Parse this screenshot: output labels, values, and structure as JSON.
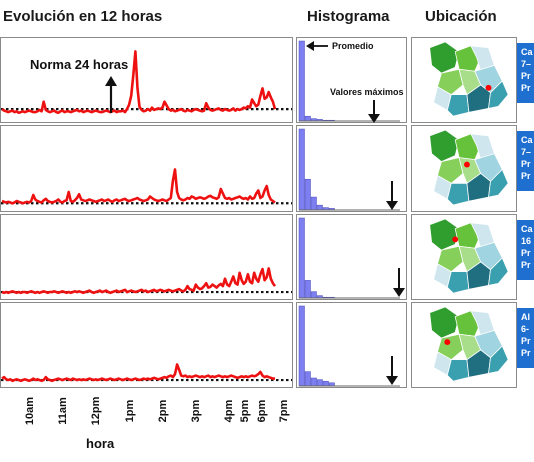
{
  "headers": {
    "evolution": "Evolución en 12 horas",
    "histogram": "Histograma",
    "location": "Ubicación"
  },
  "annotations": {
    "norm": "Norma 24 horas",
    "promedio": "Promedio",
    "valores_maximos": "Valores máximos"
  },
  "x_axis": {
    "label": "hora",
    "ticks": [
      "10am",
      "11am",
      "12pm",
      "1pm",
      "2pm",
      "3pm",
      "4pm",
      "5pm",
      "6pm",
      "7pm"
    ]
  },
  "colors": {
    "line": "#ee1111",
    "histogram_bar": "#7d7ff0",
    "info_panel": "#1f6fd1",
    "map_highlight": "#44bb22",
    "map_light_green": "#a8dd8a",
    "map_pale_blue": "#cfe6ee",
    "map_teal": "#3aa0b0",
    "map_dark_teal": "#1f6f80",
    "station_marker": "#ff0000"
  },
  "info_panels": [
    [
      "Ca",
      "7–",
      "Pr",
      "Pr"
    ],
    [
      "Ca",
      "7–",
      "Pr",
      "Pr"
    ],
    [
      "Ca",
      "16",
      "Pr",
      "Pr"
    ],
    [
      "Al",
      "6-",
      "Pr",
      "Pr"
    ]
  ],
  "chart_data": [
    {
      "type": "line",
      "x_range": [
        9.0,
        19.4
      ],
      "ylim": [
        0,
        100
      ],
      "norm": 12,
      "series": [
        {
          "values": [
            12,
            10,
            9,
            8,
            9,
            10,
            8,
            9,
            7,
            8,
            9,
            8,
            9,
            10,
            9,
            8,
            8,
            9,
            11,
            9,
            22,
            11,
            9,
            8,
            9,
            10,
            8,
            7,
            9,
            10,
            8,
            9,
            9,
            8,
            9,
            10,
            11,
            9,
            10,
            8,
            9,
            10,
            9,
            8,
            9,
            10,
            9,
            8,
            8,
            9,
            10,
            9,
            8,
            9,
            10,
            8,
            9,
            9,
            10,
            8,
            12,
            18,
            30,
            58,
            90,
            40,
            15,
            11,
            9,
            10,
            12,
            10,
            14,
            11,
            12,
            13,
            12,
            14,
            22,
            17,
            12,
            10,
            11,
            9,
            10,
            11,
            12,
            10,
            9,
            11,
            10,
            9,
            11,
            12,
            11,
            10,
            9,
            10,
            20,
            14,
            11,
            10,
            11,
            12,
            13,
            11,
            10,
            12,
            11,
            10,
            11,
            13,
            10,
            12,
            11,
            12,
            14,
            13,
            16,
            14,
            25,
            20,
            16,
            18,
            30,
            40,
            26,
            28,
            35,
            28,
            22,
            12
          ]
        }
      ],
      "histogram": [
        100,
        6,
        3,
        2,
        1,
        1
      ]
    },
    {
      "type": "line",
      "x_range": [
        9.0,
        19.4
      ],
      "ylim": [
        0,
        100
      ],
      "norm": 5,
      "series": [
        {
          "values": [
            8,
            7,
            6,
            7,
            6,
            5,
            6,
            8,
            7,
            6,
            5,
            6,
            7,
            6,
            8,
            16,
            10,
            8,
            7,
            6,
            9,
            11,
            8,
            7,
            6,
            7,
            8,
            10,
            7,
            6,
            8,
            9,
            20,
            8,
            7,
            9,
            12,
            17,
            10,
            9,
            8,
            9,
            10,
            9,
            8,
            7,
            8,
            9,
            10,
            8,
            9,
            10,
            8,
            7,
            9,
            10,
            8,
            9,
            10,
            11,
            9,
            8,
            9,
            10,
            11,
            12,
            10,
            9,
            8,
            9,
            10,
            14,
            12,
            10,
            9,
            8,
            9,
            10,
            9,
            8,
            10,
            12,
            35,
            50,
            20,
            12,
            10,
            9,
            10,
            12,
            11,
            14,
            13,
            11,
            12,
            13,
            12,
            11,
            12,
            14,
            15,
            13,
            12,
            11,
            13,
            24,
            18,
            12,
            11,
            12,
            10,
            11,
            12,
            13,
            14,
            12,
            11,
            12,
            10,
            14,
            11,
            12,
            18,
            22,
            12,
            14,
            22,
            28,
            16,
            10,
            8,
            6
          ]
        }
      ],
      "histogram": [
        100,
        38,
        16,
        6,
        3,
        2
      ]
    },
    {
      "type": "line",
      "x_range": [
        9.0,
        19.4
      ],
      "ylim": [
        0,
        100
      ],
      "norm": 4,
      "series": [
        {
          "values": [
            4,
            3,
            4,
            3,
            4,
            5,
            4,
            3,
            4,
            3,
            4,
            4,
            3,
            4,
            5,
            4,
            3,
            4,
            3,
            4,
            5,
            4,
            3,
            4,
            4,
            5,
            4,
            3,
            4,
            5,
            4,
            3,
            4,
            3,
            4,
            5,
            4,
            5,
            4,
            3,
            4,
            5,
            6,
            4,
            3,
            4,
            5,
            6,
            4,
            5,
            6,
            4,
            3,
            4,
            5,
            6,
            4,
            5,
            6,
            7,
            4,
            5,
            6,
            5,
            4,
            5,
            6,
            7,
            5,
            6,
            4,
            5,
            6,
            7,
            5,
            6,
            7,
            6,
            5,
            6,
            7,
            6,
            5,
            6,
            7,
            8,
            6,
            5,
            7,
            12,
            8,
            7,
            6,
            14,
            10,
            8,
            9,
            12,
            16,
            10,
            11,
            14,
            12,
            10,
            13,
            15,
            12,
            22,
            14,
            12,
            18,
            25,
            16,
            14,
            30,
            20,
            15,
            18,
            28,
            18,
            16,
            30,
            22,
            18,
            28,
            35,
            20,
            24,
            36,
            22,
            16,
            12
          ]
        }
      ],
      "histogram": [
        100,
        22,
        8,
        3,
        1,
        1
      ]
    },
    {
      "type": "line",
      "x_range": [
        9.0,
        19.4
      ],
      "ylim": [
        0,
        100
      ],
      "norm": 4,
      "series": [
        {
          "values": [
            6,
            8,
            5,
            4,
            5,
            3,
            4,
            5,
            4,
            3,
            4,
            5,
            4,
            3,
            4,
            6,
            4,
            5,
            4,
            3,
            4,
            8,
            5,
            4,
            3,
            4,
            5,
            6,
            5,
            4,
            5,
            6,
            5,
            4,
            6,
            5,
            4,
            5,
            4,
            5,
            4,
            5,
            6,
            5,
            4,
            5,
            4,
            5,
            6,
            5,
            4,
            5,
            6,
            5,
            4,
            5,
            6,
            5,
            4,
            5,
            6,
            5,
            4,
            5,
            6,
            5,
            4,
            5,
            6,
            5,
            6,
            5,
            6,
            7,
            6,
            5,
            6,
            7,
            8,
            7,
            9,
            10,
            8,
            12,
            25,
            18,
            10,
            9,
            10,
            8,
            9,
            8,
            9,
            10,
            9,
            8,
            9,
            8,
            9,
            10,
            8,
            9,
            8,
            9,
            10,
            9,
            8,
            9,
            8,
            9,
            10,
            9,
            8,
            7,
            8,
            9,
            8,
            9,
            8,
            9,
            10,
            9,
            10,
            12,
            15,
            10,
            8,
            9,
            8,
            7,
            6,
            6
          ]
        }
      ],
      "histogram": [
        100,
        18,
        10,
        8,
        6,
        4
      ]
    }
  ]
}
